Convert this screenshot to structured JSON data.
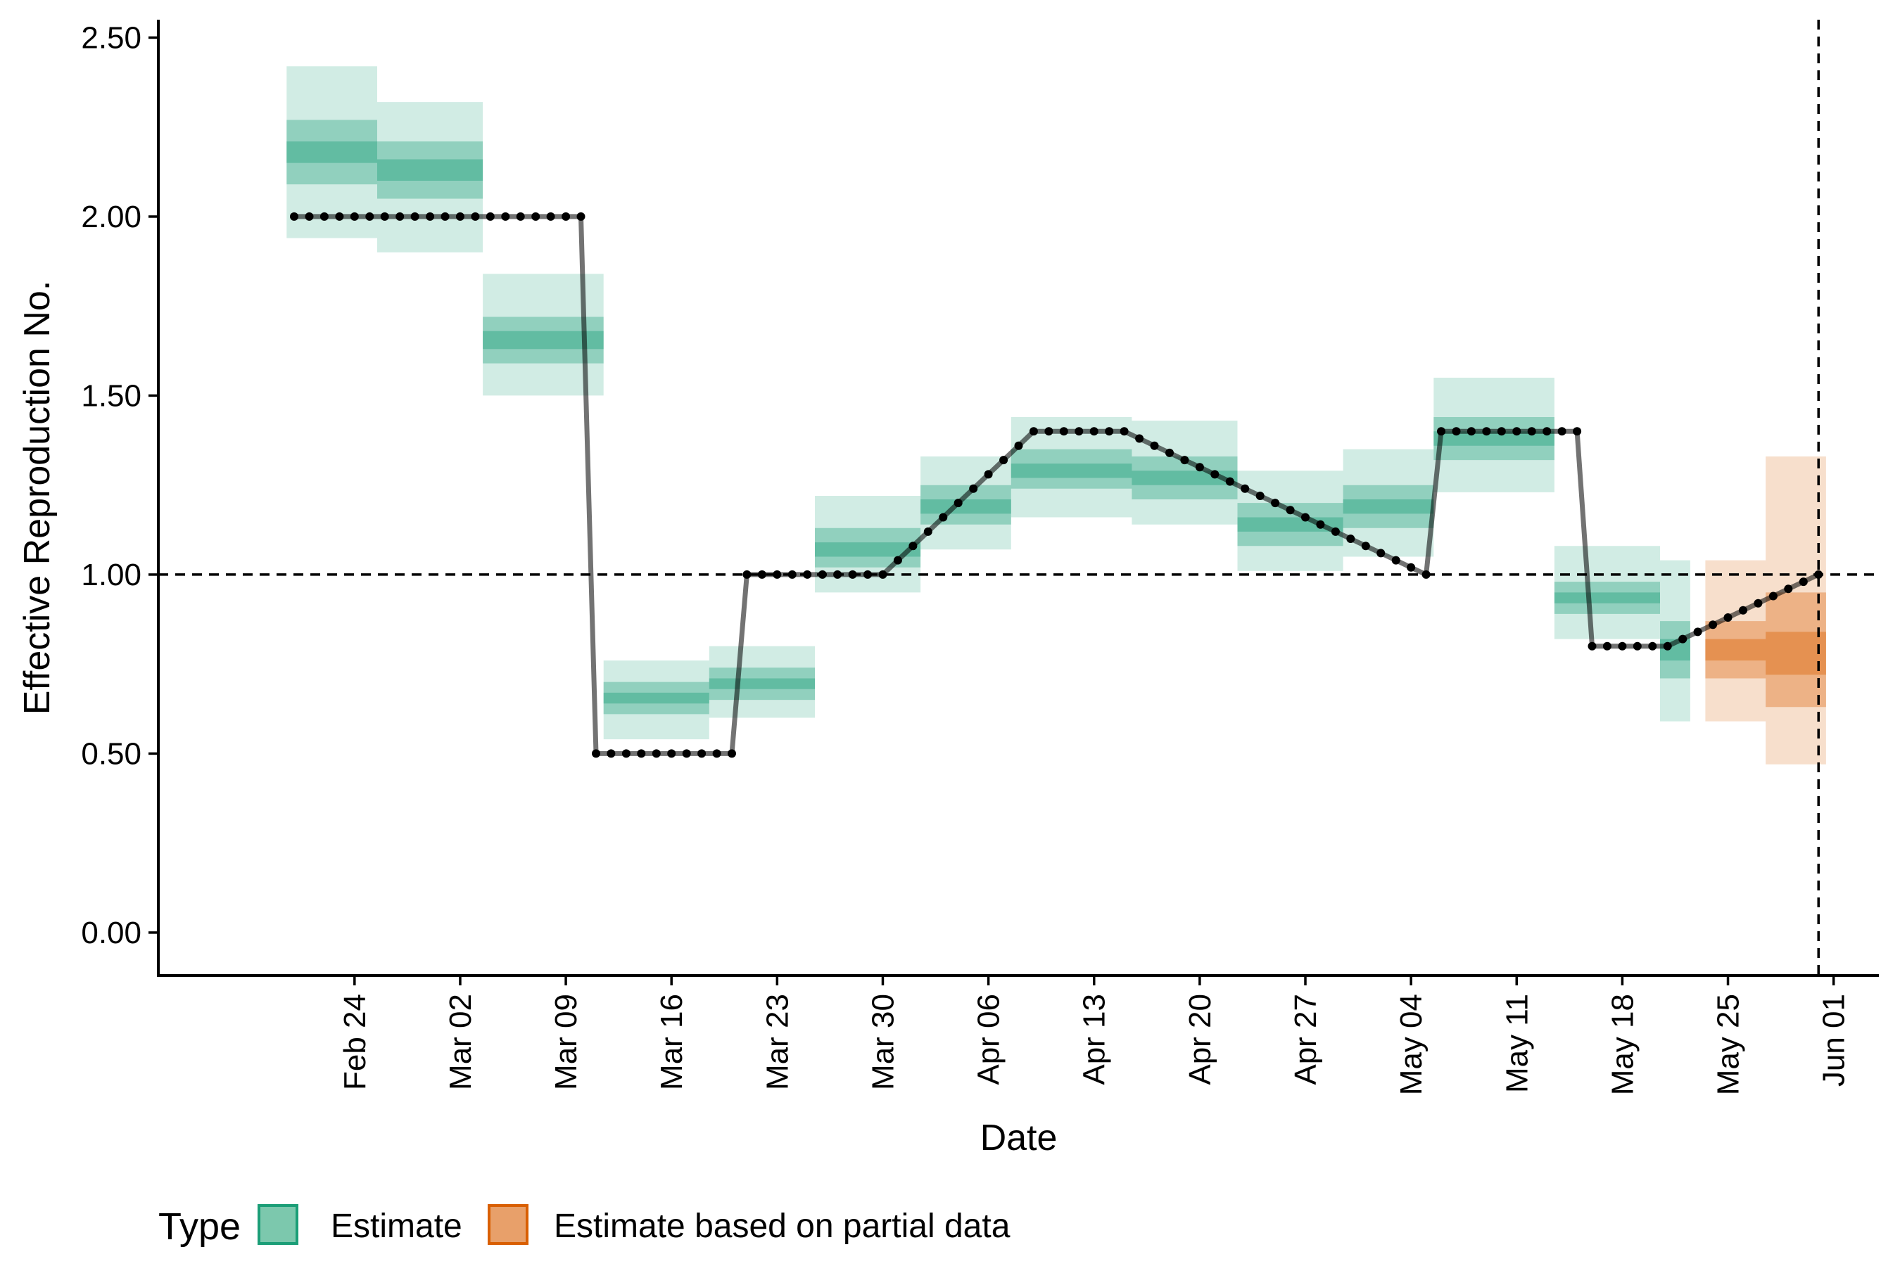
{
  "chart_data": {
    "type": "line",
    "xlabel": "Date",
    "ylabel": "Effective Reproduction No.",
    "ylim": [
      -0.12,
      2.55
    ],
    "xlim": [
      "2020-02-11",
      "2020-06-04"
    ],
    "yticks": [
      0,
      0.5,
      1,
      1.5,
      2,
      2.5
    ],
    "ytick_labels": [
      "0.00",
      "0.50",
      "1.00",
      "1.50",
      "2.00",
      "2.50"
    ],
    "xticks": [
      "2020-02-24",
      "2020-03-02",
      "2020-03-09",
      "2020-03-16",
      "2020-03-23",
      "2020-03-30",
      "2020-04-06",
      "2020-04-13",
      "2020-04-20",
      "2020-04-27",
      "2020-05-04",
      "2020-05-11",
      "2020-05-18",
      "2020-05-25",
      "2020-06-01"
    ],
    "xtick_labels": [
      "Feb 24",
      "Mar 02",
      "Mar 09",
      "Mar 16",
      "Mar 23",
      "Mar 30",
      "Apr 06",
      "Apr 13",
      "Apr 20",
      "Apr 27",
      "May 04",
      "May 11",
      "May 18",
      "May 25",
      "Jun 01"
    ],
    "reference_lines": {
      "hline": 1.0,
      "vline": "2020-05-31"
    },
    "legend": {
      "title": "Type",
      "position": "bottom",
      "entries": [
        {
          "label": "Estimate",
          "fill": "#7cc8ad",
          "stroke": "#1b9e77"
        },
        {
          "label": "Estimate based on partial data",
          "fill": "#e8a06a",
          "stroke": "#d95f02"
        }
      ]
    },
    "bands": [
      {
        "name": "Estimate",
        "color": "#1b9e77",
        "segments": [
          {
            "start": "2020-02-20",
            "end": "2020-02-25",
            "q": [
              1.94,
              2.09,
              2.15,
              2.21,
              2.27,
              2.42
            ]
          },
          {
            "start": "2020-02-26",
            "end": "2020-03-03",
            "q": [
              1.9,
              2.05,
              2.1,
              2.16,
              2.21,
              2.32
            ]
          },
          {
            "start": "2020-03-04",
            "end": "2020-03-11",
            "q": [
              1.5,
              1.59,
              1.63,
              1.68,
              1.72,
              1.84
            ]
          },
          {
            "start": "2020-03-12",
            "end": "2020-03-18",
            "q": [
              0.54,
              0.61,
              0.64,
              0.67,
              0.7,
              0.76
            ]
          },
          {
            "start": "2020-03-19",
            "end": "2020-03-25",
            "q": [
              0.6,
              0.65,
              0.68,
              0.71,
              0.74,
              0.8
            ]
          },
          {
            "start": "2020-03-26",
            "end": "2020-04-01",
            "q": [
              0.95,
              1.02,
              1.05,
              1.09,
              1.13,
              1.22
            ]
          },
          {
            "start": "2020-04-02",
            "end": "2020-04-07",
            "q": [
              1.07,
              1.14,
              1.17,
              1.21,
              1.25,
              1.33
            ]
          },
          {
            "start": "2020-04-08",
            "end": "2020-04-15",
            "q": [
              1.16,
              1.24,
              1.27,
              1.31,
              1.35,
              1.44
            ]
          },
          {
            "start": "2020-04-16",
            "end": "2020-04-22",
            "q": [
              1.14,
              1.21,
              1.25,
              1.29,
              1.33,
              1.43
            ]
          },
          {
            "start": "2020-04-23",
            "end": "2020-04-29",
            "q": [
              1.01,
              1.08,
              1.12,
              1.16,
              1.2,
              1.29
            ]
          },
          {
            "start": "2020-04-30",
            "end": "2020-05-05",
            "q": [
              1.05,
              1.13,
              1.17,
              1.21,
              1.25,
              1.35
            ]
          },
          {
            "start": "2020-05-06",
            "end": "2020-05-13",
            "q": [
              1.23,
              1.32,
              1.36,
              1.4,
              1.44,
              1.55
            ]
          },
          {
            "start": "2020-05-14",
            "end": "2020-05-20",
            "q": [
              0.82,
              0.89,
              0.92,
              0.95,
              0.98,
              1.08
            ]
          },
          {
            "start": "2020-05-21",
            "end": "2020-05-22",
            "q": [
              0.59,
              0.71,
              0.76,
              0.82,
              0.87,
              1.04
            ]
          }
        ]
      },
      {
        "name": "Estimate based on partial data",
        "color": "#d95f02",
        "segments": [
          {
            "start": "2020-05-24",
            "end": "2020-05-27",
            "q": [
              0.59,
              0.71,
              0.76,
              0.82,
              0.87,
              1.04
            ]
          },
          {
            "start": "2020-05-28",
            "end": "2020-05-31",
            "q": [
              0.47,
              0.63,
              0.72,
              0.84,
              0.95,
              1.33
            ]
          }
        ]
      }
    ],
    "series": [
      {
        "name": "",
        "color": "#000000",
        "start": "2020-02-20",
        "values": [
          2.0,
          2.0,
          2.0,
          2.0,
          2.0,
          2.0,
          2.0,
          2.0,
          2.0,
          2.0,
          2.0,
          2.0,
          2.0,
          2.0,
          2.0,
          2.0,
          2.0,
          2.0,
          2.0,
          2.0,
          0.5,
          0.5,
          0.5,
          0.5,
          0.5,
          0.5,
          0.5,
          0.5,
          0.5,
          0.5,
          1.0,
          1.0,
          1.0,
          1.0,
          1.0,
          1.0,
          1.0,
          1.0,
          1.0,
          1.0,
          1.04,
          1.08,
          1.12,
          1.16,
          1.2,
          1.24,
          1.28,
          1.32,
          1.36,
          1.4,
          1.4,
          1.4,
          1.4,
          1.4,
          1.4,
          1.4,
          1.38,
          1.36,
          1.34,
          1.32,
          1.3,
          1.28,
          1.26,
          1.24,
          1.22,
          1.2,
          1.18,
          1.16,
          1.14,
          1.12,
          1.1,
          1.08,
          1.06,
          1.04,
          1.02,
          1.0,
          1.4,
          1.4,
          1.4,
          1.4,
          1.4,
          1.4,
          1.4,
          1.4,
          1.4,
          1.4,
          0.8,
          0.8,
          0.8,
          0.8,
          0.8,
          0.8,
          0.82,
          0.84,
          0.86,
          0.88,
          0.9,
          0.92,
          0.94,
          0.96,
          0.98,
          1.0
        ]
      }
    ]
  }
}
